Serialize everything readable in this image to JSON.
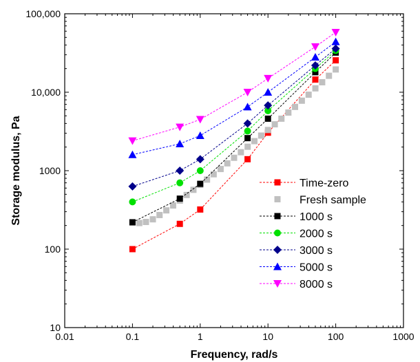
{
  "chart_data": {
    "type": "scatter",
    "title": "",
    "xlabel": "Frequency, rad/s",
    "ylabel": "Storage modulus, Pa",
    "xscale": "log",
    "yscale": "log",
    "xlim": [
      0.01,
      1000
    ],
    "ylim": [
      10,
      100000
    ],
    "x_ticks": [
      0.01,
      0.1,
      1,
      10,
      100,
      1000
    ],
    "x_tick_labels": [
      "0.01",
      "0.1",
      "1",
      "10",
      "100",
      "1000"
    ],
    "y_ticks": [
      10,
      100,
      1000,
      10000,
      100000
    ],
    "y_tick_labels": [
      "10",
      "100",
      "1000",
      "10,000",
      "100,000"
    ],
    "grid": false,
    "legend_position": "bottom-right",
    "series": [
      {
        "name": "Time-zero",
        "color": "#ff0000",
        "marker": "square",
        "line": "dashed",
        "points": [
          [
            0.1,
            100
          ],
          [
            0.5,
            210
          ],
          [
            1,
            320
          ],
          [
            5,
            1400
          ],
          [
            10,
            3050
          ],
          [
            50,
            14500
          ],
          [
            100,
            25500
          ]
        ]
      },
      {
        "name": "Fresh sample",
        "color": "#c0c0c0",
        "marker": "square",
        "line": "none",
        "points": [
          [
            0.1,
            218
          ],
          [
            0.126,
            215
          ],
          [
            0.158,
            222
          ],
          [
            0.2,
            240
          ],
          [
            0.251,
            272
          ],
          [
            0.316,
            312
          ],
          [
            0.398,
            360
          ],
          [
            0.501,
            415
          ],
          [
            0.631,
            490
          ],
          [
            0.794,
            570
          ],
          [
            1,
            660
          ],
          [
            1.26,
            770
          ],
          [
            1.58,
            900
          ],
          [
            2,
            1050
          ],
          [
            2.51,
            1240
          ],
          [
            3.16,
            1460
          ],
          [
            3.98,
            1720
          ],
          [
            5.01,
            2020
          ],
          [
            6.31,
            2380
          ],
          [
            7.94,
            2800
          ],
          [
            10,
            3300
          ],
          [
            12.6,
            3900
          ],
          [
            15.8,
            4600
          ],
          [
            20,
            5500
          ],
          [
            25.1,
            6500
          ],
          [
            31.6,
            7800
          ],
          [
            39.8,
            9300
          ],
          [
            50.1,
            11200
          ],
          [
            63.1,
            13400
          ],
          [
            79.4,
            16200
          ],
          [
            100,
            19500
          ]
        ]
      },
      {
        "name": "1000 s",
        "color": "#000000",
        "marker": "square",
        "line": "dashed",
        "points": [
          [
            0.1,
            220
          ],
          [
            0.5,
            440
          ],
          [
            1,
            680
          ],
          [
            5,
            2600
          ],
          [
            10,
            4600
          ],
          [
            50,
            18000
          ],
          [
            100,
            32000
          ]
        ]
      },
      {
        "name": "2000 s",
        "color": "#00e000",
        "marker": "circle",
        "line": "dashed",
        "points": [
          [
            0.1,
            400
          ],
          [
            0.5,
            700
          ],
          [
            1,
            1000
          ],
          [
            5,
            3200
          ],
          [
            10,
            5800
          ],
          [
            50,
            20000
          ],
          [
            100,
            34000
          ]
        ]
      },
      {
        "name": "3000 s",
        "color": "#00008b",
        "marker": "diamond",
        "line": "dashed",
        "points": [
          [
            0.1,
            630
          ],
          [
            0.5,
            1000
          ],
          [
            1,
            1400
          ],
          [
            5,
            4000
          ],
          [
            10,
            6800
          ],
          [
            50,
            22000
          ],
          [
            100,
            36000
          ]
        ]
      },
      {
        "name": "5000 s",
        "color": "#0000ff",
        "marker": "triangle-up",
        "line": "dashed",
        "points": [
          [
            0.1,
            1600
          ],
          [
            0.5,
            2200
          ],
          [
            1,
            2800
          ],
          [
            5,
            6500
          ],
          [
            10,
            10000
          ],
          [
            50,
            28000
          ],
          [
            100,
            44000
          ]
        ]
      },
      {
        "name": "8000 s",
        "color": "#ff00ff",
        "marker": "triangle-down",
        "line": "dashed",
        "points": [
          [
            0.1,
            2400
          ],
          [
            0.5,
            3600
          ],
          [
            1,
            4500
          ],
          [
            5,
            10000
          ],
          [
            10,
            15000
          ],
          [
            50,
            38000
          ],
          [
            100,
            58000
          ]
        ]
      }
    ]
  }
}
